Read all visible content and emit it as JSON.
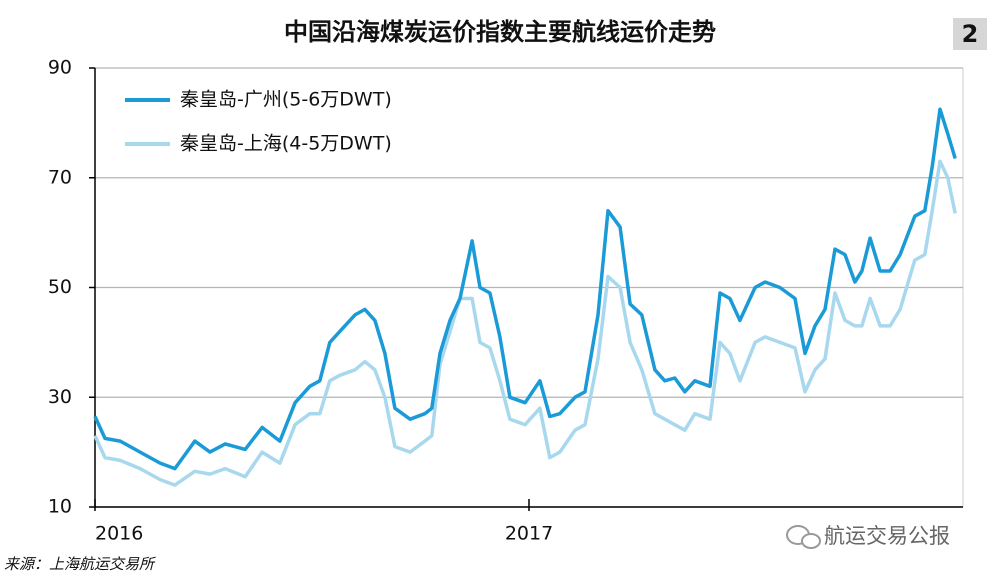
{
  "chart_data": {
    "type": "line",
    "title": "中国沿海煤炭运价指数主要航线运价走势",
    "badge": "2",
    "source": "来源：上海航运交易所",
    "watermark": "航运交易公报",
    "x": [
      2016.0,
      2016.023,
      2016.058,
      2016.104,
      2016.15,
      2016.184,
      2016.23,
      2016.265,
      2016.3,
      2016.346,
      2016.385,
      2016.426,
      2016.461,
      2016.495,
      2016.518,
      2016.541,
      2016.564,
      2016.599,
      2016.622,
      2016.645,
      2016.668,
      2016.691,
      2016.726,
      2016.76,
      2016.776,
      2016.795,
      2016.818,
      2016.841,
      2016.869,
      2016.887,
      2016.91,
      2016.933,
      2016.956,
      2016.991,
      2017.025,
      2017.048,
      2017.071,
      2017.106,
      2017.129,
      2017.159,
      2017.182,
      2017.21,
      2017.233,
      2017.26,
      2017.29,
      2017.313,
      2017.336,
      2017.359,
      2017.382,
      2017.417,
      2017.44,
      2017.463,
      2017.486,
      2017.521,
      2017.544,
      2017.578,
      2017.613,
      2017.636,
      2017.659,
      2017.682,
      2017.705,
      2017.728,
      2017.751,
      2017.767,
      2017.786,
      2017.809,
      2017.832,
      2017.855,
      2017.889,
      2017.912,
      2017.929,
      2017.947,
      2017.965,
      2017.982
    ],
    "series": [
      {
        "name": "秦皇岛-广州(5-6万DWT)",
        "color": "#1a9bd7",
        "values": [
          26.5,
          22.5,
          22,
          20,
          18,
          17,
          22,
          20,
          21.5,
          20.5,
          24.5,
          22,
          29,
          32,
          33,
          40,
          42,
          45,
          46,
          44,
          38,
          28,
          26,
          27,
          28,
          38,
          44,
          48,
          58.5,
          50,
          49,
          41,
          30,
          29,
          33,
          26.5,
          27,
          30,
          31,
          45,
          64,
          61,
          47,
          45,
          35,
          33,
          33.5,
          31,
          33,
          32,
          49,
          48,
          44,
          50,
          51,
          50,
          48,
          38,
          43,
          46,
          57,
          56,
          51,
          53,
          59,
          53,
          53,
          56,
          63,
          64,
          72,
          82.5,
          78,
          73.5
        ]
      },
      {
        "name": "秦皇岛-上海(4-5万DWT)",
        "color": "#a8d8ee",
        "values": [
          23,
          19,
          18.5,
          17,
          15,
          14,
          16.5,
          16,
          17,
          15.5,
          20,
          18,
          25,
          27,
          27,
          33,
          34,
          35,
          36.5,
          35,
          30,
          21,
          20,
          22,
          23,
          36,
          42,
          48,
          48,
          40,
          39,
          33,
          26,
          25,
          28,
          19,
          20,
          24,
          25,
          37,
          52,
          50,
          40,
          35,
          27,
          26,
          25,
          24,
          27,
          26,
          40,
          38,
          33,
          40,
          41,
          40,
          39,
          31,
          35,
          37,
          49,
          44,
          43,
          43,
          48,
          43,
          43,
          46,
          55,
          56,
          64,
          73,
          70,
          63.5
        ]
      }
    ],
    "xlim": [
      2016,
      2018
    ],
    "xticks": [
      2016,
      2017
    ],
    "ylim": [
      10,
      90
    ],
    "yticks": [
      10,
      30,
      50,
      70,
      90
    ],
    "grid": true,
    "legend": "top-left"
  }
}
